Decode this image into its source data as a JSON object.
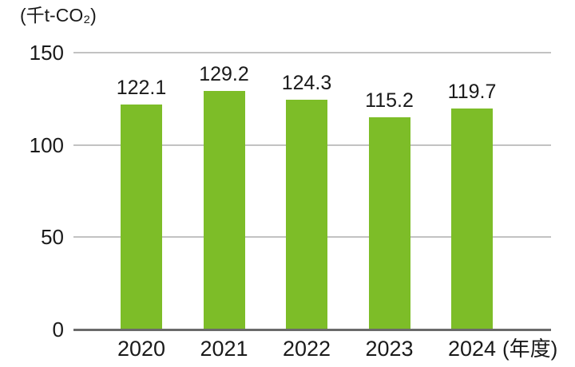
{
  "chart_data": {
    "type": "bar",
    "categories": [
      "2020",
      "2021",
      "2022",
      "2023",
      "2024"
    ],
    "values": [
      122.1,
      129.2,
      124.3,
      115.2,
      119.7
    ],
    "value_labels": [
      "122.1",
      "129.2",
      "124.3",
      "115.2",
      "119.7"
    ],
    "title": "",
    "xlabel": "(年度)",
    "ylabel": "(千t-CO₂)",
    "yticks": [
      0,
      50,
      100,
      150
    ],
    "ytick_labels": [
      "0",
      "50",
      "100",
      "150"
    ],
    "ylim": [
      0,
      150
    ],
    "grid": true,
    "legend": "none",
    "colors": {
      "bar": "#7DBD28",
      "gridline": "#C2C2C2",
      "baseline": "#6A6A6A",
      "text": "#1A1A1A",
      "background": "#FFFFFF"
    }
  }
}
